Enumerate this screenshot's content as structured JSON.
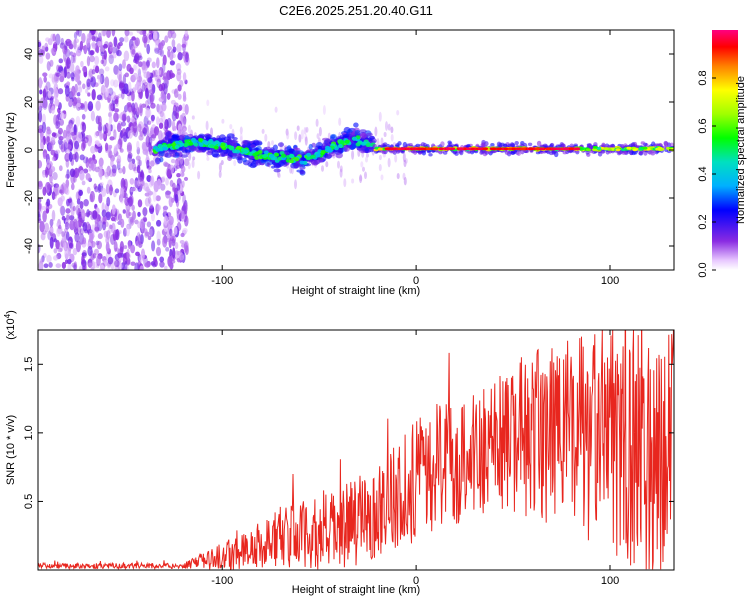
{
  "title": "C2E6.2025.251.20.40.G11",
  "chart_data": [
    {
      "type": "heatmap",
      "xlabel": "Height of straight line (km)",
      "ylabel": "Frequency (Hz)",
      "xlim": [
        -195,
        133
      ],
      "ylim": [
        -50,
        50
      ],
      "xticks": [
        -100,
        0,
        100
      ],
      "yticks": [
        -40,
        -20,
        0,
        20,
        40
      ],
      "colorbar": {
        "label": "Normalized spectral amplitude",
        "range": [
          0.0,
          1.0
        ],
        "ticks": [
          0.0,
          0.2,
          0.4,
          0.6,
          0.8
        ],
        "tick_labels": [
          "0.0",
          "0.2",
          "0.4",
          "0.6",
          "0.8"
        ]
      },
      "features": {
        "noise_region_x": [
          -195,
          -118
        ],
        "wandering_signal_x": [
          -135,
          -22
        ],
        "steady_tone_x": [
          -22,
          133
        ],
        "steady_tone_freq": 0.5
      }
    },
    {
      "type": "line",
      "xlabel": "Height of straight line (km)",
      "ylabel": "SNR (10 * v/v)",
      "scale_label": "(x10",
      "scale_exp": "4",
      "xlim": [
        -195,
        133
      ],
      "ylim": [
        0,
        1.75
      ],
      "xticks": [
        -100,
        0,
        100
      ],
      "yticks": [
        0.5,
        1.0,
        1.5
      ],
      "ytick_labels": [
        "0.5",
        "1.0",
        "1.5"
      ],
      "color": "#e8261e",
      "trend": [
        [
          -195,
          0.03
        ],
        [
          -120,
          0.03
        ],
        [
          -100,
          0.1
        ],
        [
          -80,
          0.18
        ],
        [
          -70,
          0.25
        ],
        [
          -50,
          0.25
        ],
        [
          -30,
          0.35
        ],
        [
          -10,
          0.55
        ],
        [
          10,
          0.75
        ],
        [
          30,
          0.85
        ],
        [
          50,
          0.95
        ],
        [
          70,
          1.0
        ],
        [
          90,
          0.95
        ],
        [
          110,
          0.9
        ],
        [
          133,
          0.85
        ]
      ],
      "amp": [
        [
          -195,
          0.02
        ],
        [
          -120,
          0.02
        ],
        [
          -100,
          0.1
        ],
        [
          -70,
          0.22
        ],
        [
          -40,
          0.3
        ],
        [
          -20,
          0.35
        ],
        [
          0,
          0.45
        ],
        [
          40,
          0.5
        ],
        [
          90,
          0.8
        ],
        [
          133,
          0.95
        ]
      ]
    }
  ]
}
